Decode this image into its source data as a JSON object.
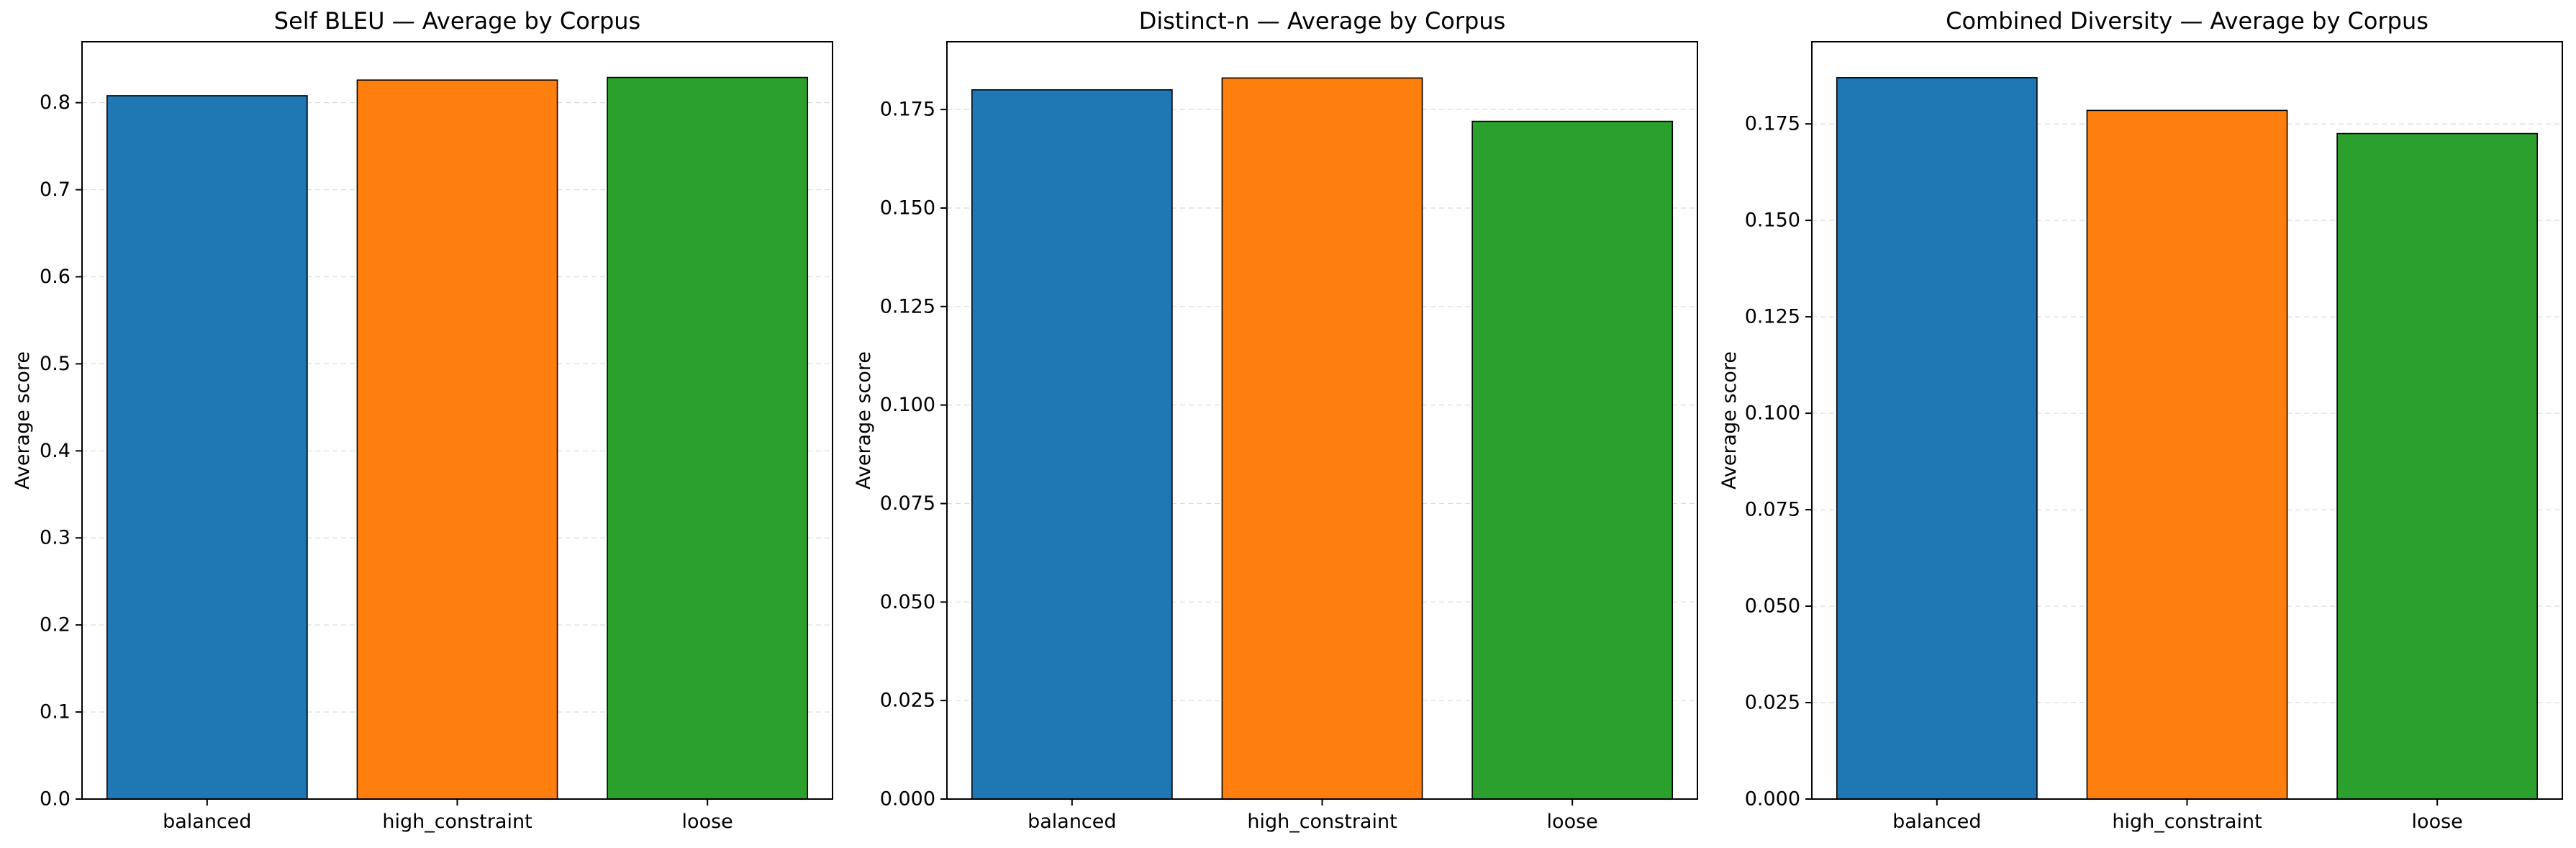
{
  "chart_data": [
    {
      "type": "bar",
      "title": "Self BLEU — Average by Corpus",
      "xlabel": "",
      "ylabel": "Average score",
      "categories": [
        "balanced",
        "high_constraint",
        "loose"
      ],
      "values": [
        0.808,
        0.826,
        0.829
      ],
      "colors": [
        "#1f77b4",
        "#ff7f0e",
        "#2ca02c"
      ],
      "ylim": [
        0,
        0.87
      ],
      "yticks": [
        0.0,
        0.1,
        0.2,
        0.3,
        0.4,
        0.5,
        0.6,
        0.7,
        0.8
      ],
      "ytick_labels": [
        "0.0",
        "0.1",
        "0.2",
        "0.3",
        "0.4",
        "0.5",
        "0.6",
        "0.7",
        "0.8"
      ],
      "grid": "y-dashed",
      "legend": "none"
    },
    {
      "type": "bar",
      "title": "Distinct-n — Average by Corpus",
      "xlabel": "",
      "ylabel": "Average score",
      "categories": [
        "balanced",
        "high_constraint",
        "loose"
      ],
      "values": [
        0.18,
        0.183,
        0.172
      ],
      "colors": [
        "#1f77b4",
        "#ff7f0e",
        "#2ca02c"
      ],
      "ylim": [
        0,
        0.1922
      ],
      "yticks": [
        0.0,
        0.025,
        0.05,
        0.075,
        0.1,
        0.125,
        0.15,
        0.175
      ],
      "ytick_labels": [
        "0.000",
        "0.025",
        "0.050",
        "0.075",
        "0.100",
        "0.125",
        "0.150",
        "0.175"
      ],
      "grid": "y-dashed",
      "legend": "none"
    },
    {
      "type": "bar",
      "title": "Combined Diversity — Average by Corpus",
      "xlabel": "",
      "ylabel": "Average score",
      "categories": [
        "balanced",
        "high_constraint",
        "loose"
      ],
      "values": [
        0.187,
        0.1785,
        0.1725
      ],
      "colors": [
        "#1f77b4",
        "#ff7f0e",
        "#2ca02c"
      ],
      "ylim": [
        0,
        0.1963
      ],
      "yticks": [
        0.0,
        0.025,
        0.05,
        0.075,
        0.1,
        0.125,
        0.15,
        0.175
      ],
      "ytick_labels": [
        "0.000",
        "0.025",
        "0.050",
        "0.075",
        "0.100",
        "0.125",
        "0.150",
        "0.175"
      ],
      "grid": "y-dashed",
      "legend": "none"
    }
  ]
}
